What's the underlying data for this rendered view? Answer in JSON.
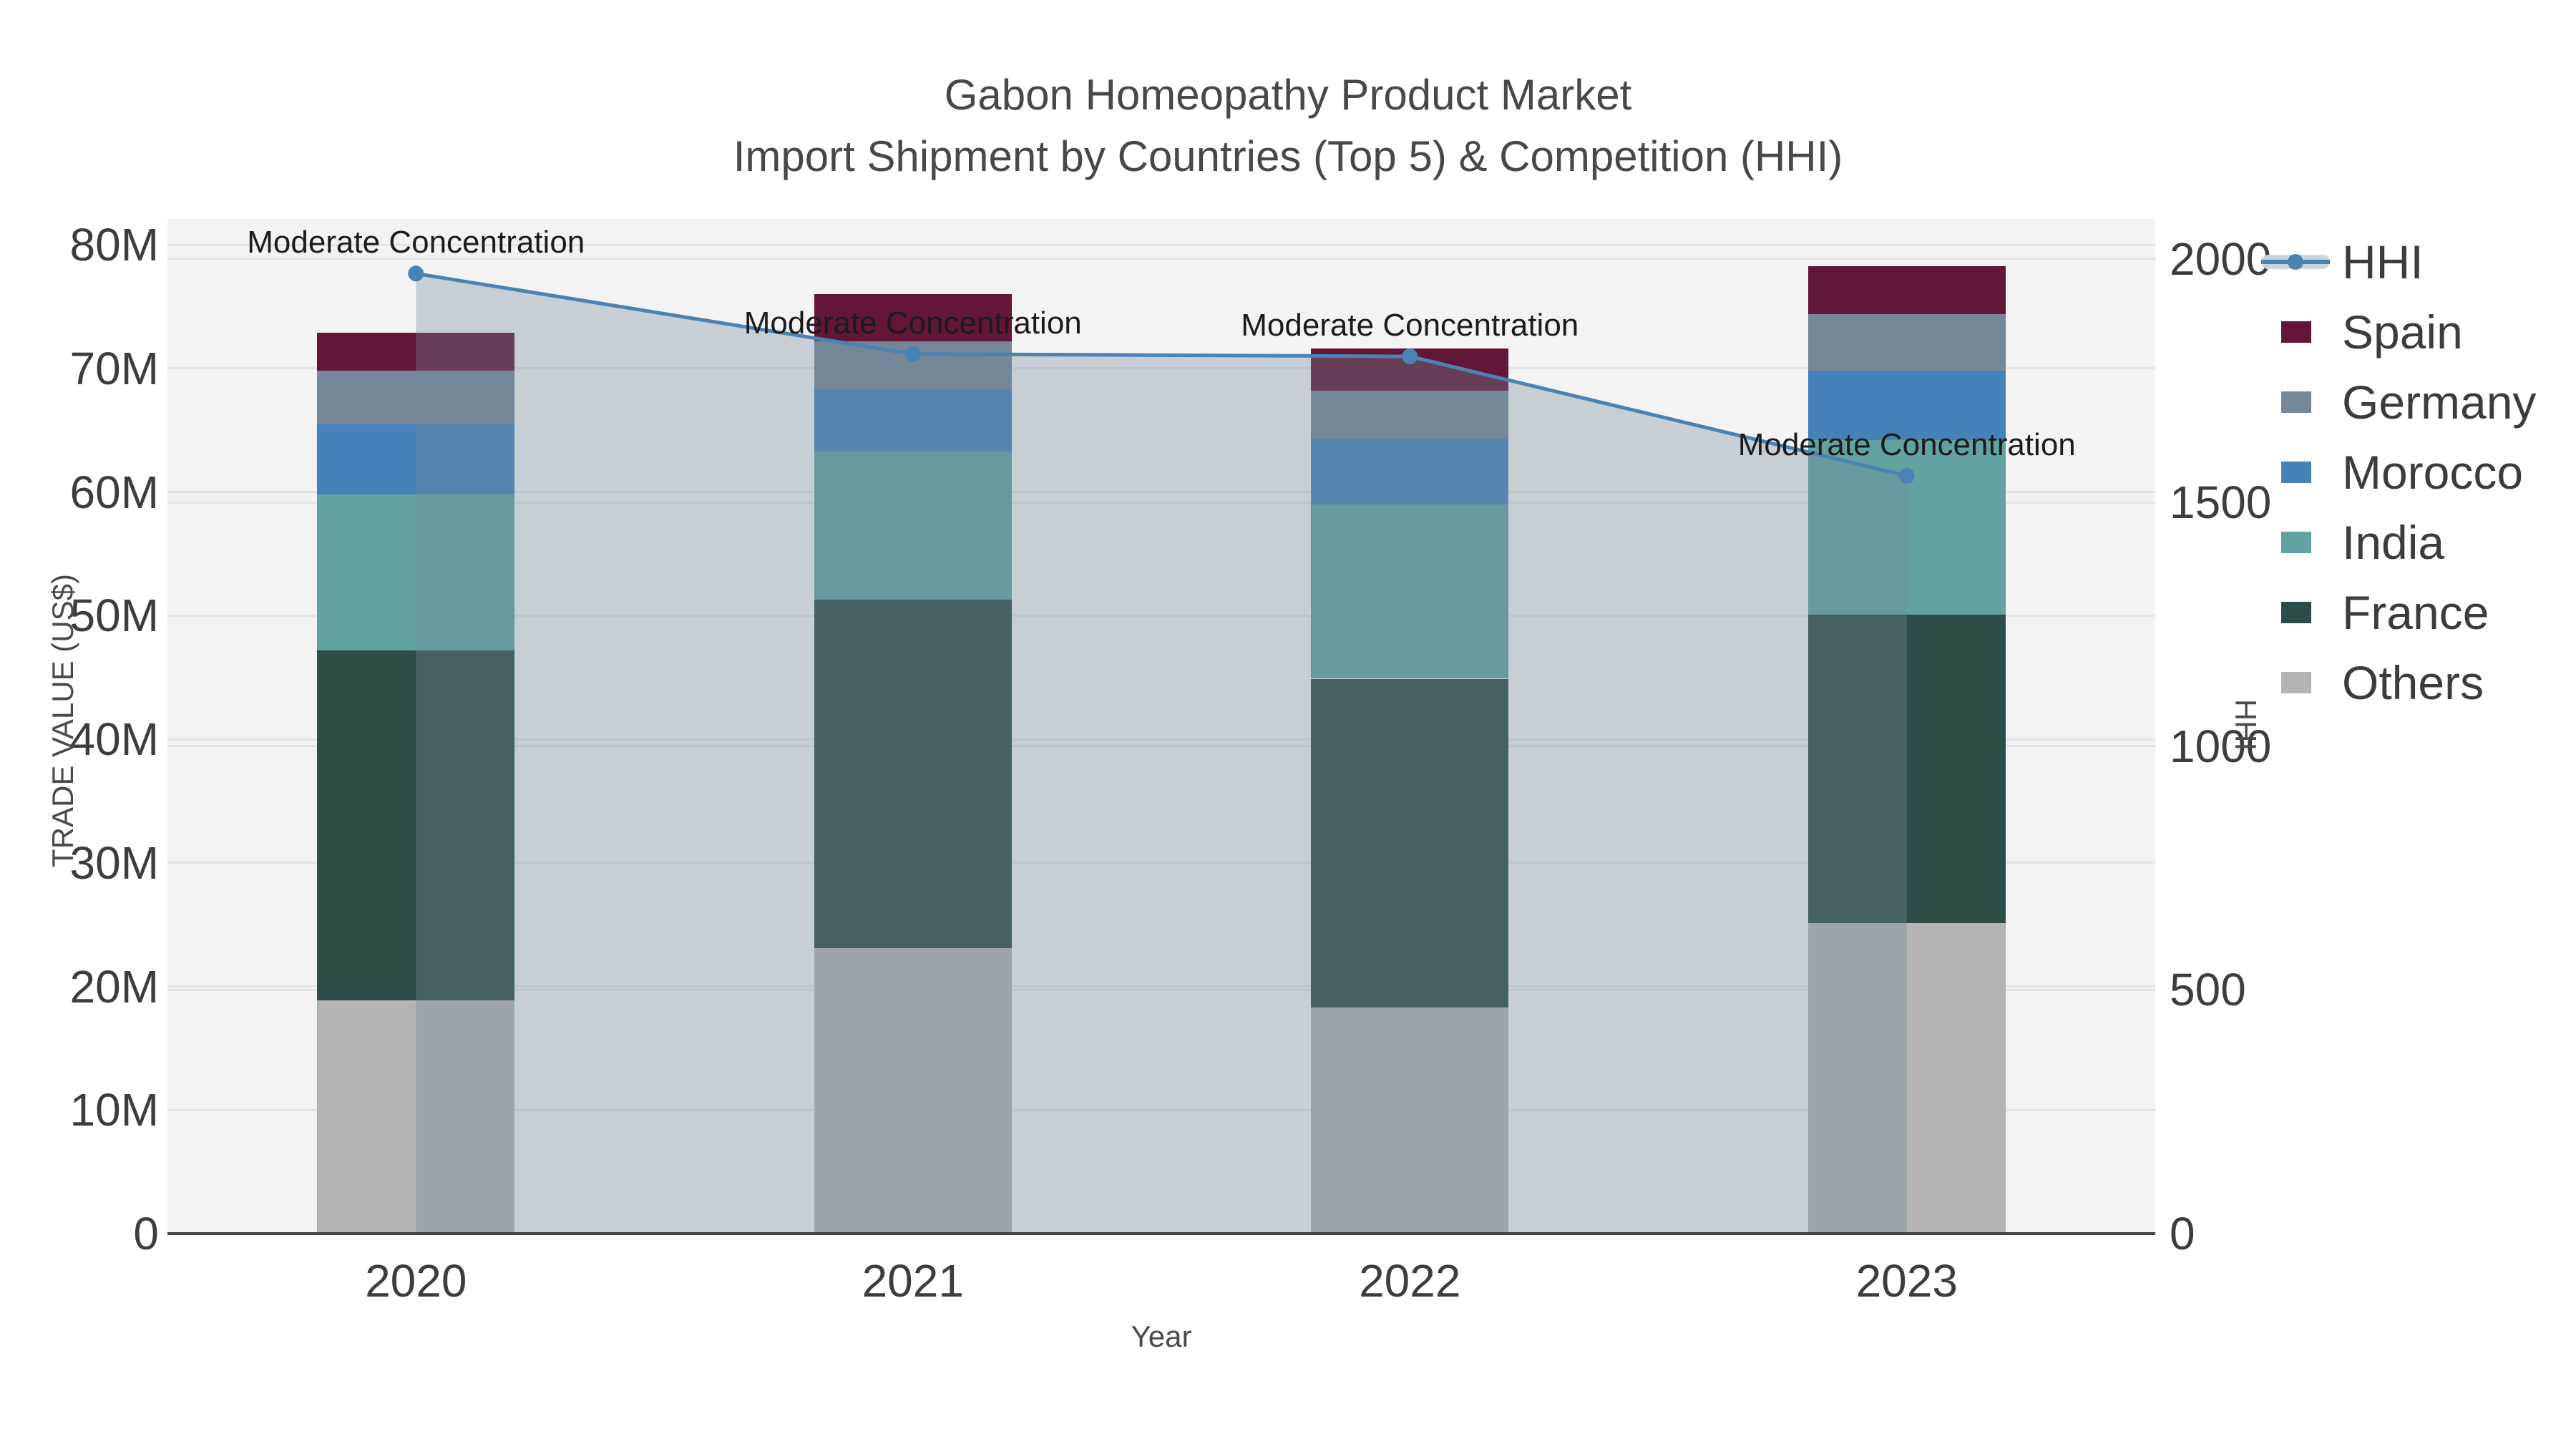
{
  "title": {
    "line1": "Gabon Homeopathy Product Market",
    "line2": "Import Shipment by Countries (Top 5) & Competition (HHI)"
  },
  "axes": {
    "left": {
      "name": "TRADE VALUE (US$)",
      "tick_labels": [
        "0",
        "10M",
        "20M",
        "30M",
        "40M",
        "50M",
        "60M",
        "70M",
        "80M"
      ],
      "tick_values_millions": [
        0,
        10,
        20,
        30,
        40,
        50,
        60,
        70,
        80
      ],
      "max_millions": 82.1
    },
    "right": {
      "name": "HHI",
      "tick_labels": [
        "0",
        "500",
        "1000",
        "1500",
        "2000"
      ],
      "tick_values": [
        0,
        500,
        1000,
        1500,
        2000
      ],
      "max": 2082
    },
    "x": {
      "name": "Year",
      "categories": [
        "2020",
        "2021",
        "2022",
        "2023"
      ]
    }
  },
  "legend": {
    "items": [
      {
        "label": "HHI",
        "type": "line",
        "color": "#4a82b4"
      },
      {
        "label": "Spain",
        "type": "box",
        "color": "#621638"
      },
      {
        "label": "Germany",
        "type": "box",
        "color": "#76879a"
      },
      {
        "label": "Morocco",
        "type": "box",
        "color": "#4781ba"
      },
      {
        "label": "India",
        "type": "box",
        "color": "#62a2a1"
      },
      {
        "label": "France",
        "type": "box",
        "color": "#2e4c47"
      },
      {
        "label": "Others",
        "type": "box",
        "color": "#b5b3b3"
      }
    ]
  },
  "chart_data": {
    "type": "combo: stacked bar (left axis) + line with area (right axis)",
    "unit": "US$ millions (bars), HHI index (line)",
    "categories": [
      "2020",
      "2021",
      "2022",
      "2023"
    ],
    "series": [
      {
        "name": "Others",
        "color": "#b5b3b3",
        "values": [
          18.9,
          23.1,
          18.3,
          25.1
        ]
      },
      {
        "name": "France",
        "color": "#2e4c47",
        "values": [
          28.3,
          28.2,
          26.6,
          25.0
        ]
      },
      {
        "name": "India",
        "color": "#62a2a1",
        "values": [
          12.6,
          12.0,
          14.1,
          14.1
        ]
      },
      {
        "name": "Morocco",
        "color": "#4781ba",
        "values": [
          5.7,
          5.0,
          5.3,
          5.6
        ]
      },
      {
        "name": "Germany",
        "color": "#76879a",
        "values": [
          4.3,
          3.9,
          3.9,
          4.6
        ]
      },
      {
        "name": "Spain",
        "color": "#621638",
        "values": [
          3.1,
          3.8,
          3.4,
          3.9
        ]
      }
    ],
    "stack_totals_millions": [
      72.9,
      76.0,
      71.6,
      78.3
    ],
    "line": {
      "name": "HHI",
      "axis": "right",
      "values": [
        1970,
        1805,
        1800,
        1555
      ],
      "color": "#4a82b4",
      "area_fill": "rgba(114,138,152,0.34)"
    },
    "annotations": [
      {
        "text": "Moderate Concentration",
        "category": "2020"
      },
      {
        "text": "Moderate Concentration",
        "category": "2021"
      },
      {
        "text": "Moderate Concentration",
        "category": "2022"
      },
      {
        "text": "Moderate Concentration",
        "category": "2023"
      }
    ],
    "layout_hints": {
      "grid": "horizontal only, both axes",
      "legend_position": "right",
      "plot_bg": "#f3f3f4"
    }
  },
  "colors": {
    "plot_bg": "#f3f3f4",
    "gridline": "#e4e4e7",
    "axis_line": "#444444",
    "tick_text": "#3d3d3d",
    "title_text": "#484848",
    "annotation_text": "#1c1c1c",
    "hhi_line": "#4a82b4",
    "hhi_legend_pill": "#ccd3dc"
  }
}
